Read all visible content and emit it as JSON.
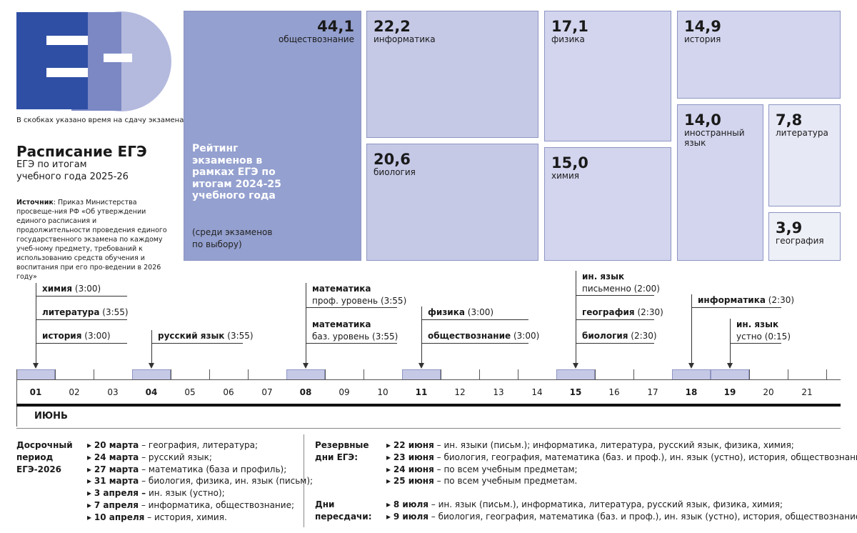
{
  "header": {
    "note": "В скобках указано время на сдачу экзамена",
    "title": "Расписание ЕГЭ",
    "subtitle": [
      "ЕГЭ по итогам",
      "учебного года 2025-26"
    ],
    "source_label": "Источник",
    "source_text": ": Приказ Министерства просвеще-ния РФ «Об утверждении единого расписания и продолжительности проведения единого государственного экзамена по каждому учеб-ному предмету, требований к использованию средств обучения и воспитания при его про-ведении в 2026 году»"
  },
  "rating": {
    "heading": "Рейтинг экзаменов в рамках ЕГЭ по итогам 2024-25 учебного года",
    "note": "(среди экзаменов по выбору)",
    "tiles": [
      {
        "value": "44,1",
        "name": "обществознание"
      },
      {
        "value": "22,2",
        "name": "информатика"
      },
      {
        "value": "20,6",
        "name": "биология"
      },
      {
        "value": "17,1",
        "name": "физика"
      },
      {
        "value": "15,0",
        "name": "химия"
      },
      {
        "value": "14,9",
        "name": "история"
      },
      {
        "value": "14,0",
        "name": "иностранный язык"
      },
      {
        "value": "7,8",
        "name": "литература"
      },
      {
        "value": "3,9",
        "name": "география"
      }
    ]
  },
  "timeline": {
    "month": "июнь",
    "days": [
      "01",
      "02",
      "03",
      "04",
      "05",
      "06",
      "07",
      "08",
      "09",
      "10",
      "11",
      "12",
      "13",
      "14",
      "15",
      "16",
      "17",
      "18",
      "19",
      "20",
      "21"
    ],
    "events": [
      {
        "day": "01",
        "items": [
          {
            "subject": "химия",
            "time": "(3:00)"
          },
          {
            "subject": "литература",
            "time": "(3:55)"
          },
          {
            "subject": "история",
            "time": "(3:00)"
          }
        ]
      },
      {
        "day": "04",
        "items": [
          {
            "subject": "русский язык",
            "time": "(3:55)"
          }
        ]
      },
      {
        "day": "08",
        "items": [
          {
            "subject": "математика",
            "note": "проф. уровень (3:55)"
          },
          {
            "subject": "математика",
            "note": "баз. уровень (3:55)"
          }
        ]
      },
      {
        "day": "11",
        "items": [
          {
            "subject": "физика",
            "time": "(3:00)"
          },
          {
            "subject": "обществознание",
            "time": "(3:00)"
          }
        ]
      },
      {
        "day": "15",
        "items": [
          {
            "subject": "ин. язык",
            "note": "письменно (2:00)"
          },
          {
            "subject": "география",
            "time": "(2:30)"
          },
          {
            "subject": "биология",
            "time": "(2:30)"
          }
        ]
      },
      {
        "day": "18",
        "items": [
          {
            "subject": "информатика",
            "time": "(2:30)"
          }
        ]
      },
      {
        "day": "19",
        "items": [
          {
            "subject": "ин. язык",
            "note": "устно (0:15)"
          }
        ]
      }
    ]
  },
  "early": {
    "label": "Досрочный период ЕГЭ-2026",
    "items": [
      {
        "date": "20 марта",
        "text": "– география, литература;"
      },
      {
        "date": "24 марта",
        "text": "– русский язык;"
      },
      {
        "date": "27 марта",
        "text": "– математика (база и профиль);"
      },
      {
        "date": "31 марта",
        "text": "– биология, физика, ин. язык (письм);"
      },
      {
        "date": "3 апреля –",
        "text": "ин. язык (устно);"
      },
      {
        "date": "7 апреля",
        "text": "– информатика, обществознание;"
      },
      {
        "date": "10 апреля",
        "text": "– история, химия."
      }
    ]
  },
  "reserve": {
    "label": "Резервные дни ЕГЭ:",
    "items": [
      {
        "date": "22 июня",
        "text": "– ин. языки (письм.); информатика, литература, русский язык, физика, химия;"
      },
      {
        "date": "23 июня",
        "text": "– биология, география, математика (баз. и проф.), ин. язык (устно), история, обществознание;"
      },
      {
        "date": "24 июня",
        "text": "– по всем учебным предметам;"
      },
      {
        "date": "25 июня",
        "text": "– по всем учебным предметам."
      }
    ]
  },
  "retake": {
    "label": "Дни пересдачи:",
    "items": [
      {
        "date": "8 июля",
        "text": "– ин. язык (письм.), информатика, литература, русский язык, физика, химия;"
      },
      {
        "date": "9 июля",
        "text": "– биология, география, математика (баз. и проф.), ин. язык (устно), история, обществознание."
      }
    ]
  }
}
